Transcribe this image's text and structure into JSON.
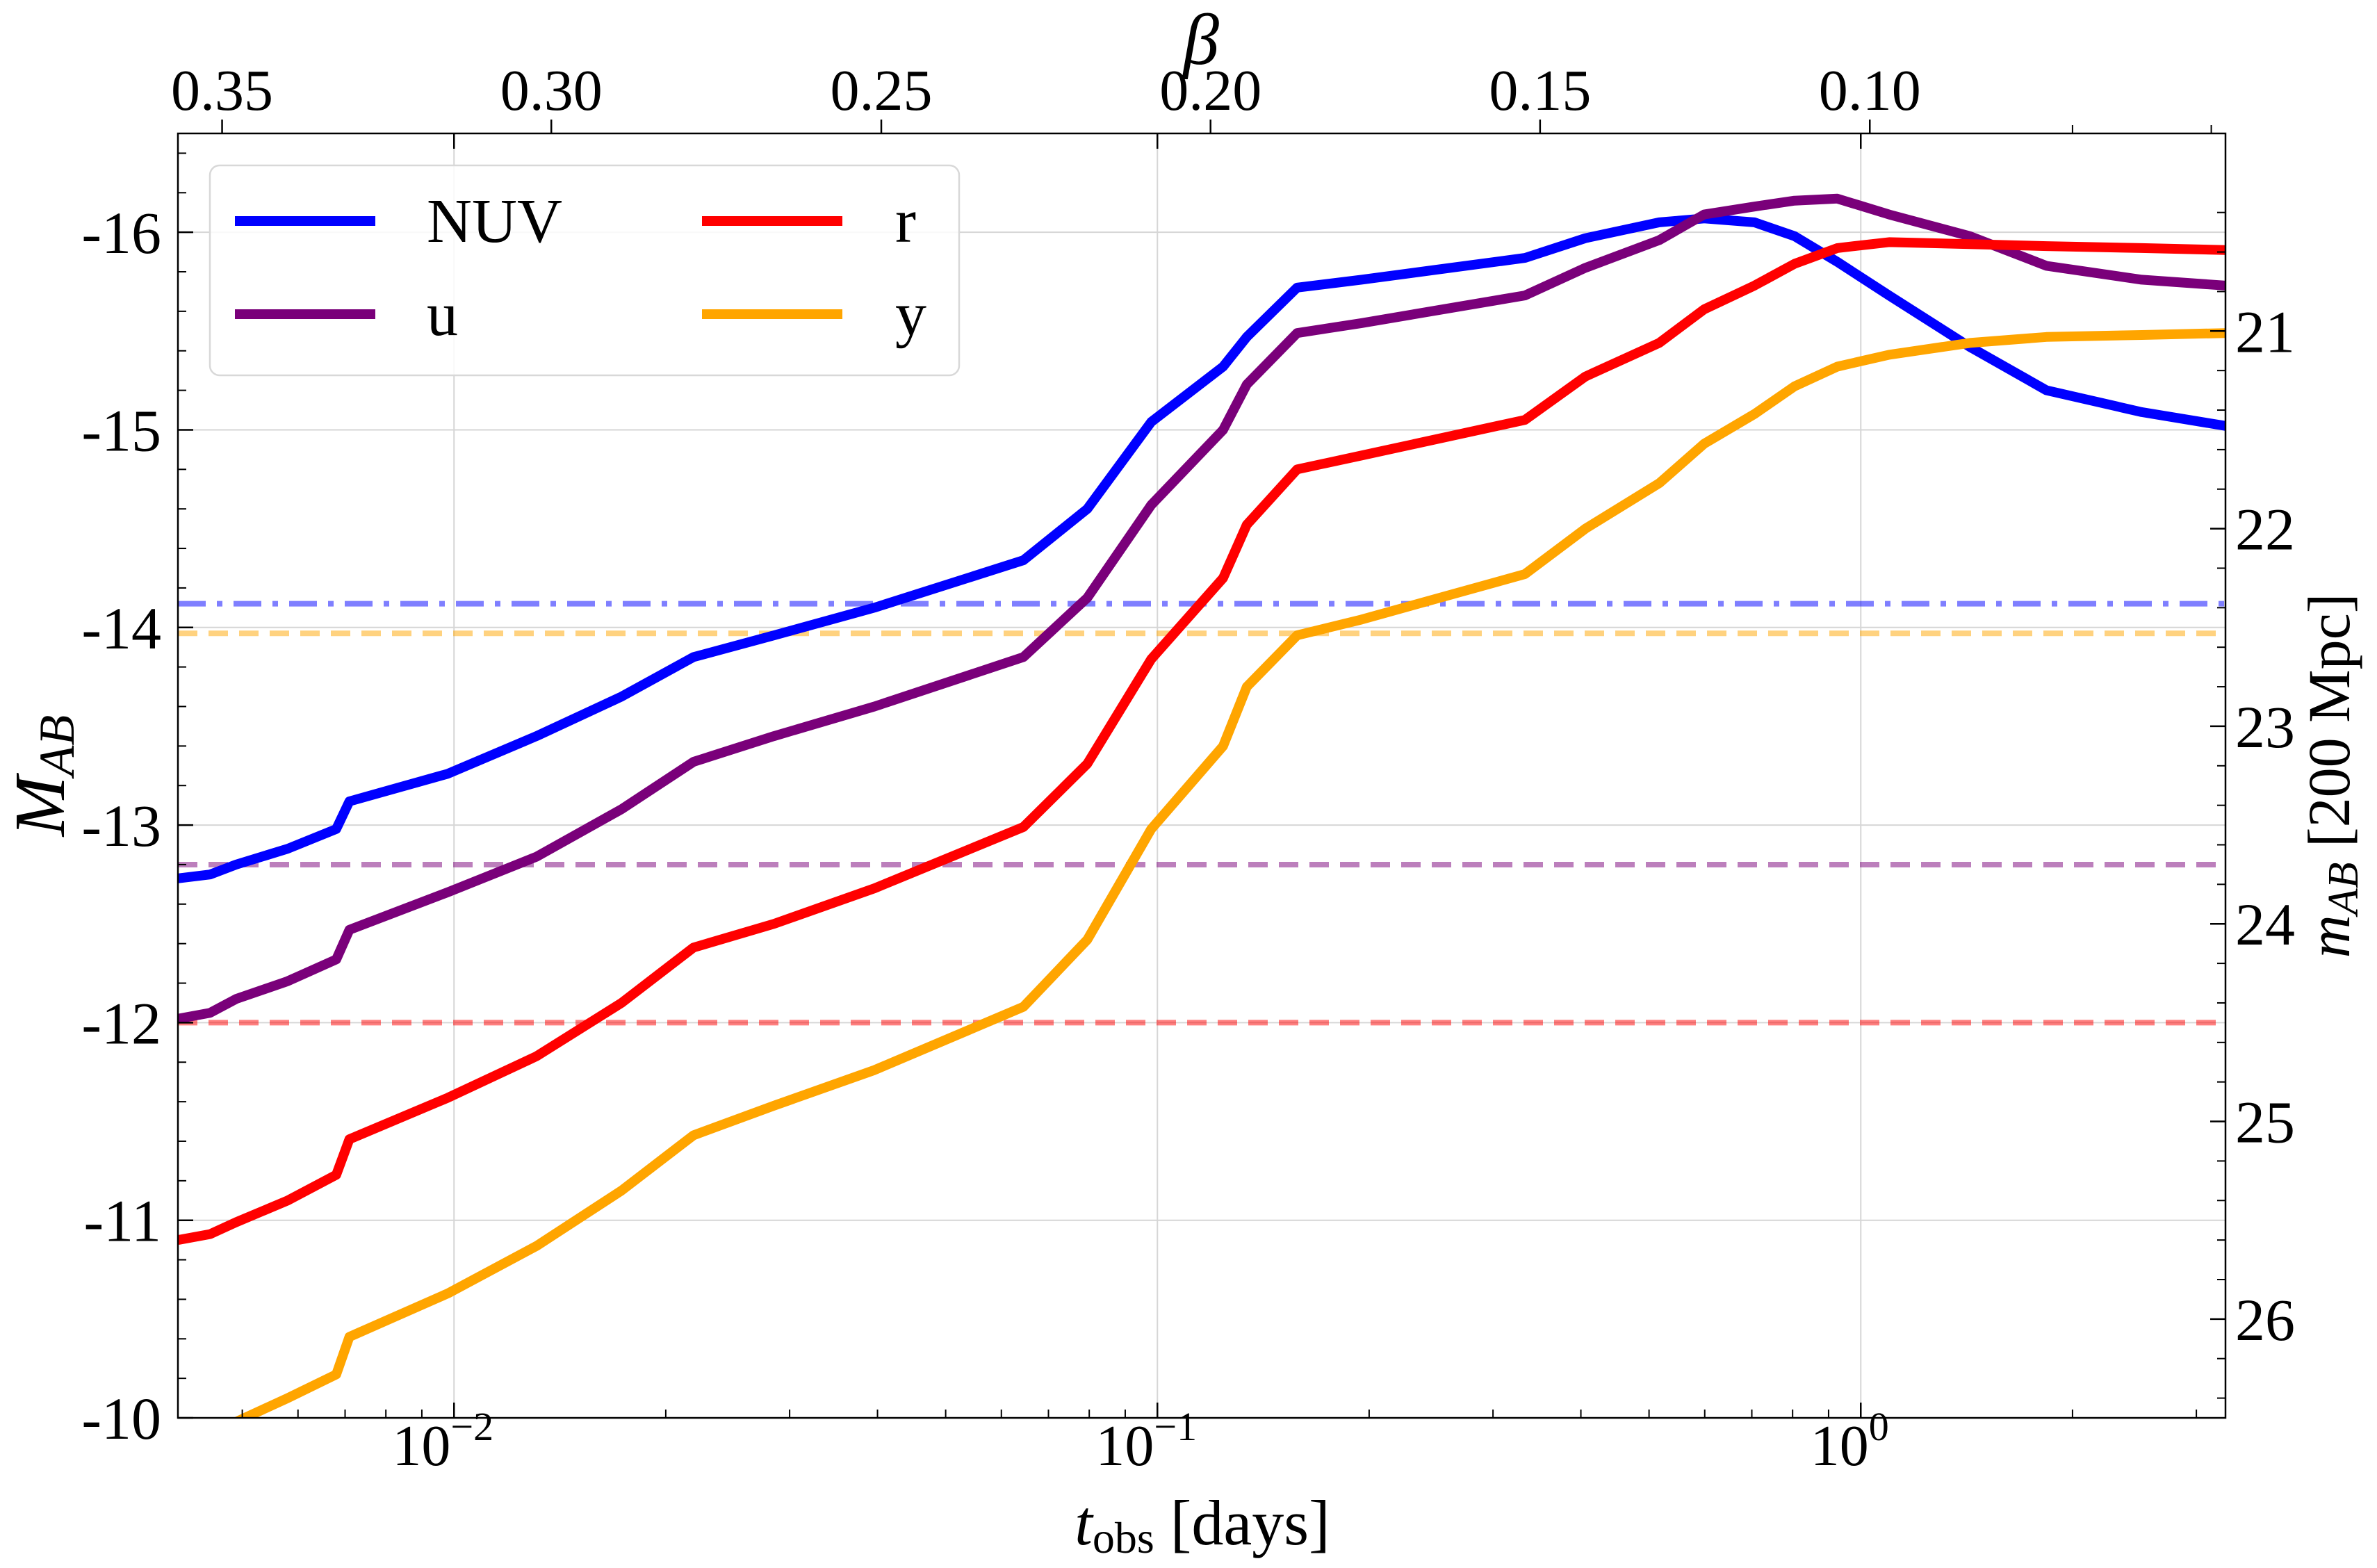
{
  "chart_data": {
    "type": "line",
    "title": "",
    "xlabel_main": "t",
    "xlabel_sub": "obs",
    "xlabel_rest": " [days]",
    "ylabel_main": "M",
    "ylabel_sub": "AB",
    "y2label_main": "m",
    "y2label_sub": "AB",
    "y2label_rest": " [200 Mpc]",
    "toplabel": "β",
    "x_scale": "log",
    "xlim": [
      0.00405,
      3.3
    ],
    "ylim": [
      -10,
      -16.5
    ],
    "grid": true,
    "legend_position": "top-left",
    "legend_columns": 2,
    "x_ticks": [
      {
        "value": 0.01,
        "base": "10",
        "exp": "−2"
      },
      {
        "value": 0.1,
        "base": "10",
        "exp": "−1"
      },
      {
        "value": 1,
        "base": "10",
        "exp": "0"
      }
    ],
    "y_ticks": [
      {
        "value": -16,
        "label": "-16"
      },
      {
        "value": -15,
        "label": "-15"
      },
      {
        "value": -14,
        "label": "-14"
      },
      {
        "value": -13,
        "label": "-13"
      },
      {
        "value": -12,
        "label": "-12"
      },
      {
        "value": -11,
        "label": "-11"
      },
      {
        "value": -10,
        "label": "-10"
      }
    ],
    "y2_ticks": [
      {
        "value": 21,
        "label": "21"
      },
      {
        "value": 22,
        "label": "22"
      },
      {
        "value": 23,
        "label": "23"
      },
      {
        "value": 24,
        "label": "24"
      },
      {
        "value": 25,
        "label": "25"
      },
      {
        "value": 26,
        "label": "26"
      }
    ],
    "y2_offset": 36.5,
    "top_ticks": [
      {
        "x": 0.00468,
        "label": "0.35"
      },
      {
        "x": 0.01375,
        "label": "0.30"
      },
      {
        "x": 0.0405,
        "label": "0.25"
      },
      {
        "x": 0.119,
        "label": "0.20"
      },
      {
        "x": 0.35,
        "label": "0.15"
      },
      {
        "x": 1.03,
        "label": "0.10"
      }
    ],
    "top_minor_ticks": [
      2.0,
      3.15
    ],
    "series": [
      {
        "name": "NUV",
        "color": "#0000ff",
        "x": [
          0.00405,
          0.0045,
          0.0049,
          0.0058,
          0.0068,
          0.0071,
          0.0098,
          0.0131,
          0.0173,
          0.0219,
          0.0285,
          0.0396,
          0.0645,
          0.0795,
          0.098,
          0.124,
          0.134,
          0.158,
          0.195,
          0.333,
          0.406,
          0.517,
          0.599,
          0.706,
          0.805,
          0.926,
          1.097,
          1.429,
          1.837,
          2.508,
          3.302
        ],
        "y": [
          -12.73,
          -12.75,
          -12.8,
          -12.88,
          -12.98,
          -13.12,
          -13.26,
          -13.45,
          -13.65,
          -13.85,
          -13.96,
          -14.1,
          -14.34,
          -14.6,
          -15.04,
          -15.32,
          -15.47,
          -15.72,
          -15.76,
          -15.87,
          -15.97,
          -16.05,
          -16.07,
          -16.05,
          -15.98,
          -15.85,
          -15.68,
          -15.42,
          -15.2,
          -15.09,
          -15.02
        ]
      },
      {
        "name": "u",
        "color": "#7a007a",
        "x": [
          0.00405,
          0.0045,
          0.0049,
          0.0058,
          0.0068,
          0.0071,
          0.0098,
          0.0131,
          0.0173,
          0.0219,
          0.0285,
          0.0396,
          0.0645,
          0.0795,
          0.098,
          0.124,
          0.134,
          0.158,
          0.195,
          0.333,
          0.406,
          0.517,
          0.599,
          0.706,
          0.805,
          0.926,
          1.097,
          1.429,
          1.837,
          2.508,
          3.302
        ],
        "y": [
          -12.02,
          -12.05,
          -12.12,
          -12.21,
          -12.32,
          -12.47,
          -12.66,
          -12.84,
          -13.08,
          -13.32,
          -13.45,
          -13.6,
          -13.85,
          -14.15,
          -14.62,
          -15.0,
          -15.23,
          -15.49,
          -15.54,
          -15.68,
          -15.82,
          -15.96,
          -16.09,
          -16.13,
          -16.16,
          -16.17,
          -16.09,
          -15.98,
          -15.83,
          -15.76,
          -15.73
        ]
      },
      {
        "name": "r",
        "color": "#ff0000",
        "x": [
          0.00405,
          0.0045,
          0.0049,
          0.0058,
          0.0068,
          0.0071,
          0.0098,
          0.0131,
          0.0173,
          0.0219,
          0.0285,
          0.0396,
          0.0645,
          0.0795,
          0.098,
          0.124,
          0.134,
          0.158,
          0.195,
          0.333,
          0.406,
          0.517,
          0.599,
          0.706,
          0.805,
          0.926,
          1.097,
          1.429,
          1.837,
          2.508,
          3.302
        ],
        "y": [
          -10.9,
          -10.93,
          -10.99,
          -11.1,
          -11.23,
          -11.41,
          -11.62,
          -11.83,
          -12.1,
          -12.38,
          -12.5,
          -12.68,
          -12.99,
          -13.31,
          -13.84,
          -14.25,
          -14.52,
          -14.8,
          -14.87,
          -15.05,
          -15.27,
          -15.44,
          -15.61,
          -15.73,
          -15.84,
          -15.92,
          -15.95,
          -15.94,
          -15.93,
          -15.92,
          -15.91
        ]
      },
      {
        "name": "y",
        "color": "#ffa500",
        "x": [
          0.00405,
          0.0045,
          0.0049,
          0.0058,
          0.0068,
          0.0071,
          0.0098,
          0.0131,
          0.0173,
          0.0219,
          0.0285,
          0.0396,
          0.0645,
          0.0795,
          0.098,
          0.124,
          0.134,
          0.158,
          0.195,
          0.333,
          0.406,
          0.517,
          0.599,
          0.706,
          0.805,
          0.926,
          1.097,
          1.429,
          1.837,
          2.508,
          3.302
        ],
        "y": [
          -9.85,
          -9.92,
          -9.98,
          -10.1,
          -10.22,
          -10.41,
          -10.63,
          -10.87,
          -11.15,
          -11.43,
          -11.58,
          -11.76,
          -12.08,
          -12.42,
          -12.98,
          -13.4,
          -13.7,
          -13.96,
          -14.04,
          -14.27,
          -14.5,
          -14.73,
          -14.93,
          -15.08,
          -15.22,
          -15.32,
          -15.38,
          -15.44,
          -15.47,
          -15.48,
          -15.49
        ]
      }
    ],
    "limit_lines": [
      {
        "band": "NUV",
        "y": -14.12,
        "color": "#0000ff",
        "style": "dashdot"
      },
      {
        "band": "y",
        "y": -13.97,
        "color": "#ffa500",
        "style": "dashed"
      },
      {
        "band": "u",
        "y": -12.8,
        "color": "#7a007a",
        "style": "dashed"
      },
      {
        "band": "r",
        "y": -12.0,
        "color": "#ff0000",
        "style": "dashed"
      }
    ]
  }
}
